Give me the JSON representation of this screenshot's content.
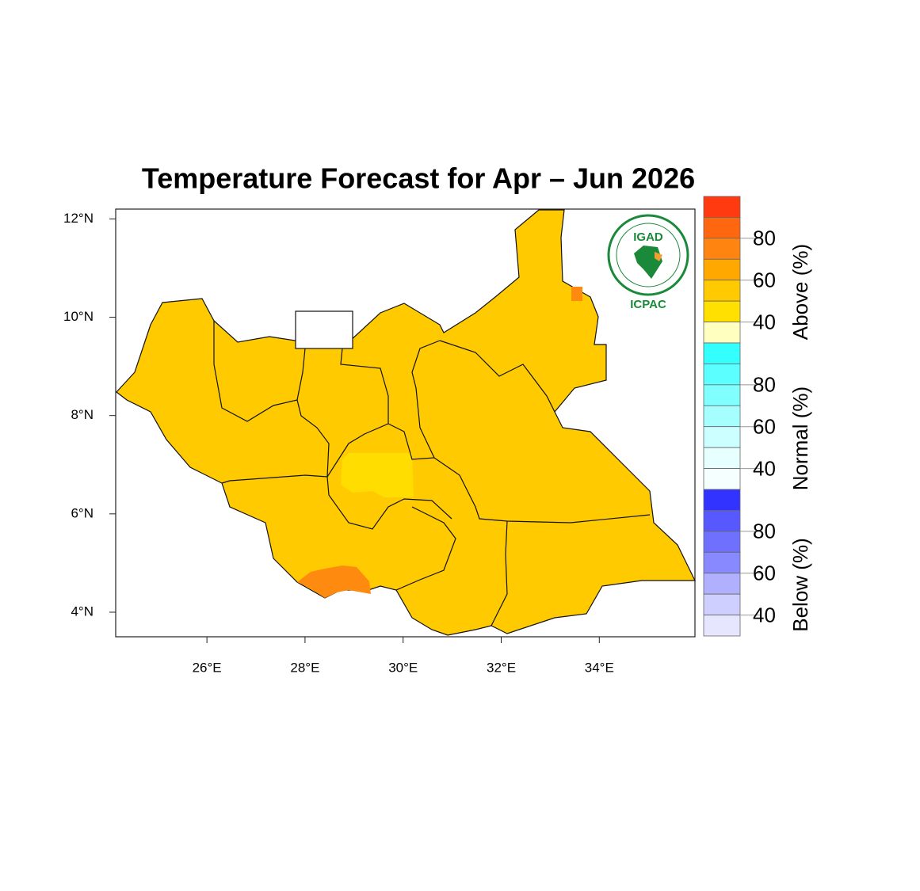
{
  "map": {
    "title": "Temperature Forecast for Apr – Jun 2026",
    "xlim": [
      24.14,
      35.95
    ],
    "ylim": [
      3.5,
      12.2
    ],
    "lat_ticks": [
      {
        "value": 4,
        "label": "4°N"
      },
      {
        "value": 6,
        "label": "6°N"
      },
      {
        "value": 8,
        "label": "8°N"
      },
      {
        "value": 10,
        "label": "10°N"
      },
      {
        "value": 12,
        "label": "12°N"
      }
    ],
    "lon_ticks": [
      {
        "value": 26,
        "label": "26°E"
      },
      {
        "value": 28,
        "label": "28°E"
      },
      {
        "value": 30,
        "label": "30°E"
      },
      {
        "value": 32,
        "label": "32°E"
      },
      {
        "value": 34,
        "label": "34°E"
      }
    ],
    "logo": {
      "name": "IGAD",
      "org": "ICPAC"
    }
  },
  "legend": {
    "range": [
      30,
      100
    ],
    "groups": [
      {
        "name": "Above (%)",
        "ticks": [
          40,
          60,
          80
        ],
        "colors": [
          "#ff3a10",
          "#ff6610",
          "#ff8510",
          "#ffa800",
          "#ffcb00",
          "#ffe000",
          "#ffffc0"
        ]
      },
      {
        "name": "Normal (%)",
        "ticks": [
          40,
          60,
          80
        ],
        "colors": [
          "#33ffff",
          "#5cffff",
          "#80ffff",
          "#a6ffff",
          "#ccffff",
          "#e6ffff",
          "#f5ffff"
        ]
      },
      {
        "name": "Below (%)",
        "ticks": [
          40,
          60,
          80
        ],
        "colors": [
          "#3333ff",
          "#5858ff",
          "#7070ff",
          "#8888ff",
          "#b0b0ff",
          "#cfcfff",
          "#e6e6ff"
        ]
      }
    ]
  }
}
